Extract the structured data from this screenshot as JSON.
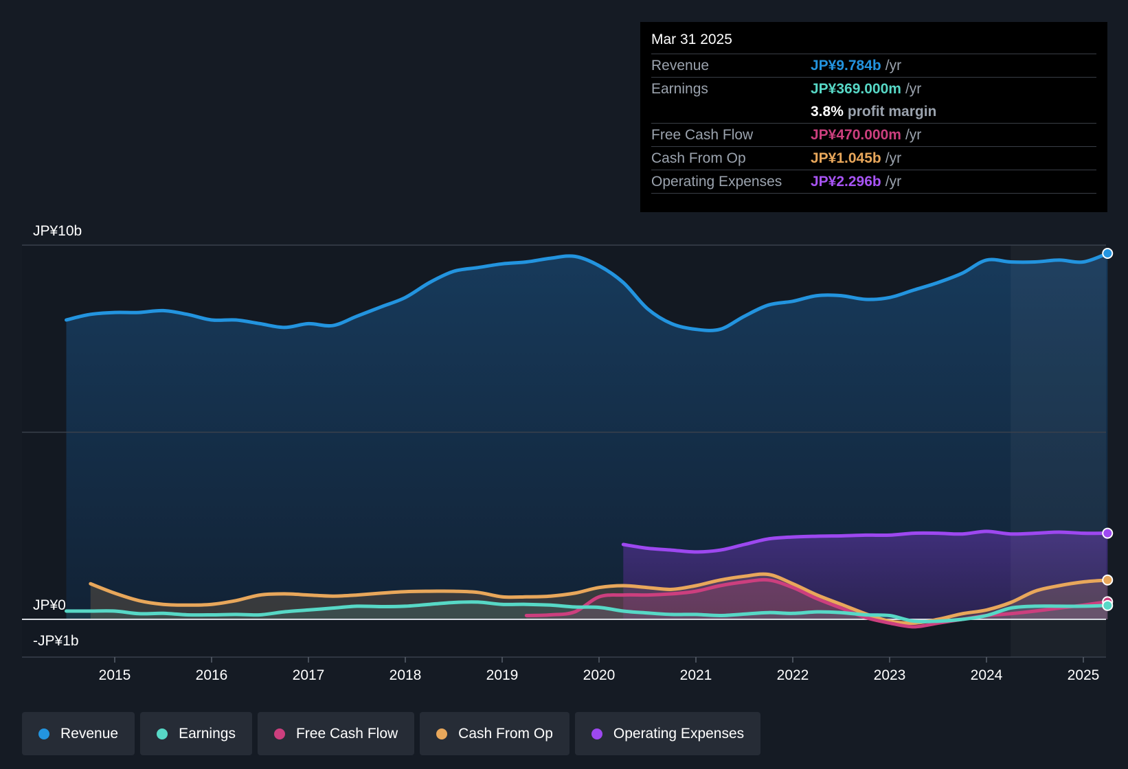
{
  "tooltip": {
    "date": "Mar 31 2025",
    "revenue": {
      "label": "Revenue",
      "value": "JP¥9.784b",
      "unit": "/yr"
    },
    "earnings": {
      "label": "Earnings",
      "value": "JP¥369.000m",
      "unit": "/yr"
    },
    "profit_margin": {
      "pct": "3.8%",
      "text": "profit margin"
    },
    "fcf": {
      "label": "Free Cash Flow",
      "value": "JP¥470.000m",
      "unit": "/yr"
    },
    "cfo": {
      "label": "Cash From Op",
      "value": "JP¥1.045b",
      "unit": "/yr"
    },
    "opex": {
      "label": "Operating Expenses",
      "value": "JP¥2.296b",
      "unit": "/yr"
    }
  },
  "legend": [
    {
      "label": "Revenue",
      "color": "#2394df"
    },
    {
      "label": "Earnings",
      "color": "#57d8c6"
    },
    {
      "label": "Free Cash Flow",
      "color": "#cc3f7e"
    },
    {
      "label": "Cash From Op",
      "color": "#e8a75b"
    },
    {
      "label": "Operating Expenses",
      "color": "#9d48f0"
    }
  ],
  "chart_data": {
    "type": "area",
    "title": "",
    "xlabel": "",
    "ylabel": "",
    "xlim": [
      2014.05,
      2025.25
    ],
    "ylim": [
      -1,
      10
    ],
    "y_axis_labels": [
      "JP¥10b",
      "JP¥0",
      "-JP¥1b"
    ],
    "y_axis_values": [
      10,
      0,
      -1
    ],
    "gridlines_at": [
      10,
      5,
      0
    ],
    "x_ticks": [
      2015,
      2016,
      2017,
      2018,
      2019,
      2020,
      2021,
      2022,
      2023,
      2024,
      2025
    ],
    "x_tick_labels": [
      "2015",
      "2016",
      "2017",
      "2018",
      "2019",
      "2020",
      "2021",
      "2022",
      "2023",
      "2024",
      "2025"
    ],
    "highlight_start": 2024.25,
    "series": [
      {
        "name": "Revenue",
        "color": "#2394df",
        "points": [
          [
            2014.5,
            8.0
          ],
          [
            2014.75,
            8.15
          ],
          [
            2015.0,
            8.2
          ],
          [
            2015.25,
            8.2
          ],
          [
            2015.5,
            8.25
          ],
          [
            2015.75,
            8.15
          ],
          [
            2016.0,
            8.0
          ],
          [
            2016.25,
            8.0
          ],
          [
            2016.5,
            7.9
          ],
          [
            2016.75,
            7.8
          ],
          [
            2017.0,
            7.9
          ],
          [
            2017.25,
            7.85
          ],
          [
            2017.5,
            8.1
          ],
          [
            2017.75,
            8.35
          ],
          [
            2018.0,
            8.6
          ],
          [
            2018.25,
            9.0
          ],
          [
            2018.5,
            9.3
          ],
          [
            2018.75,
            9.4
          ],
          [
            2019.0,
            9.5
          ],
          [
            2019.25,
            9.55
          ],
          [
            2019.5,
            9.65
          ],
          [
            2019.75,
            9.7
          ],
          [
            2020.0,
            9.45
          ],
          [
            2020.25,
            9.0
          ],
          [
            2020.5,
            8.3
          ],
          [
            2020.75,
            7.9
          ],
          [
            2021.0,
            7.75
          ],
          [
            2021.25,
            7.75
          ],
          [
            2021.5,
            8.1
          ],
          [
            2021.75,
            8.4
          ],
          [
            2022.0,
            8.5
          ],
          [
            2022.25,
            8.65
          ],
          [
            2022.5,
            8.65
          ],
          [
            2022.75,
            8.55
          ],
          [
            2023.0,
            8.6
          ],
          [
            2023.25,
            8.8
          ],
          [
            2023.5,
            9.0
          ],
          [
            2023.75,
            9.25
          ],
          [
            2024.0,
            9.6
          ],
          [
            2024.25,
            9.55
          ],
          [
            2024.5,
            9.55
          ],
          [
            2024.75,
            9.6
          ],
          [
            2025.0,
            9.55
          ],
          [
            2025.25,
            9.78
          ]
        ]
      },
      {
        "name": "Operating Expenses",
        "color": "#9d48f0",
        "points": [
          [
            2020.25,
            2.0
          ],
          [
            2020.5,
            1.9
          ],
          [
            2020.75,
            1.85
          ],
          [
            2021.0,
            1.8
          ],
          [
            2021.25,
            1.85
          ],
          [
            2021.5,
            2.0
          ],
          [
            2021.75,
            2.15
          ],
          [
            2022.0,
            2.2
          ],
          [
            2022.25,
            2.22
          ],
          [
            2022.5,
            2.23
          ],
          [
            2022.75,
            2.25
          ],
          [
            2023.0,
            2.25
          ],
          [
            2023.25,
            2.3
          ],
          [
            2023.5,
            2.3
          ],
          [
            2023.75,
            2.28
          ],
          [
            2024.0,
            2.35
          ],
          [
            2024.25,
            2.28
          ],
          [
            2024.5,
            2.3
          ],
          [
            2024.75,
            2.33
          ],
          [
            2025.0,
            2.3
          ],
          [
            2025.25,
            2.3
          ]
        ]
      },
      {
        "name": "Cash From Op",
        "color": "#e8a75b",
        "points": [
          [
            2014.75,
            0.95
          ],
          [
            2015.0,
            0.7
          ],
          [
            2015.25,
            0.5
          ],
          [
            2015.5,
            0.4
          ],
          [
            2015.75,
            0.38
          ],
          [
            2016.0,
            0.4
          ],
          [
            2016.25,
            0.5
          ],
          [
            2016.5,
            0.65
          ],
          [
            2016.75,
            0.68
          ],
          [
            2017.0,
            0.65
          ],
          [
            2017.25,
            0.62
          ],
          [
            2017.5,
            0.65
          ],
          [
            2017.75,
            0.7
          ],
          [
            2018.0,
            0.74
          ],
          [
            2018.25,
            0.75
          ],
          [
            2018.5,
            0.75
          ],
          [
            2018.75,
            0.72
          ],
          [
            2019.0,
            0.6
          ],
          [
            2019.25,
            0.6
          ],
          [
            2019.5,
            0.62
          ],
          [
            2019.75,
            0.7
          ],
          [
            2020.0,
            0.85
          ],
          [
            2020.25,
            0.9
          ],
          [
            2020.5,
            0.85
          ],
          [
            2020.75,
            0.8
          ],
          [
            2021.0,
            0.9
          ],
          [
            2021.25,
            1.05
          ],
          [
            2021.5,
            1.15
          ],
          [
            2021.75,
            1.2
          ],
          [
            2022.0,
            0.95
          ],
          [
            2022.25,
            0.65
          ],
          [
            2022.5,
            0.4
          ],
          [
            2022.75,
            0.15
          ],
          [
            2023.0,
            -0.05
          ],
          [
            2023.25,
            -0.1
          ],
          [
            2023.5,
            0.0
          ],
          [
            2023.75,
            0.15
          ],
          [
            2024.0,
            0.25
          ],
          [
            2024.25,
            0.45
          ],
          [
            2024.5,
            0.75
          ],
          [
            2024.75,
            0.9
          ],
          [
            2025.0,
            1.0
          ],
          [
            2025.25,
            1.05
          ]
        ]
      },
      {
        "name": "Free Cash Flow",
        "color": "#cc3f7e",
        "points": [
          [
            2019.25,
            0.1
          ],
          [
            2019.5,
            0.12
          ],
          [
            2019.75,
            0.2
          ],
          [
            2020.0,
            0.6
          ],
          [
            2020.25,
            0.65
          ],
          [
            2020.5,
            0.65
          ],
          [
            2020.75,
            0.68
          ],
          [
            2021.0,
            0.75
          ],
          [
            2021.25,
            0.9
          ],
          [
            2021.5,
            1.0
          ],
          [
            2021.75,
            1.05
          ],
          [
            2022.0,
            0.85
          ],
          [
            2022.25,
            0.55
          ],
          [
            2022.5,
            0.3
          ],
          [
            2022.75,
            0.05
          ],
          [
            2023.0,
            -0.1
          ],
          [
            2023.25,
            -0.2
          ],
          [
            2023.5,
            -0.1
          ],
          [
            2023.75,
            0.0
          ],
          [
            2024.0,
            0.1
          ],
          [
            2024.25,
            0.15
          ],
          [
            2024.5,
            0.22
          ],
          [
            2024.75,
            0.3
          ],
          [
            2025.0,
            0.38
          ],
          [
            2025.25,
            0.47
          ]
        ]
      },
      {
        "name": "Earnings",
        "color": "#57d8c6",
        "points": [
          [
            2014.5,
            0.22
          ],
          [
            2014.75,
            0.22
          ],
          [
            2015.0,
            0.22
          ],
          [
            2015.25,
            0.15
          ],
          [
            2015.5,
            0.16
          ],
          [
            2015.75,
            0.12
          ],
          [
            2016.0,
            0.12
          ],
          [
            2016.25,
            0.13
          ],
          [
            2016.5,
            0.12
          ],
          [
            2016.75,
            0.2
          ],
          [
            2017.0,
            0.25
          ],
          [
            2017.25,
            0.3
          ],
          [
            2017.5,
            0.35
          ],
          [
            2017.75,
            0.34
          ],
          [
            2018.0,
            0.35
          ],
          [
            2018.25,
            0.4
          ],
          [
            2018.5,
            0.45
          ],
          [
            2018.75,
            0.46
          ],
          [
            2019.0,
            0.4
          ],
          [
            2019.25,
            0.4
          ],
          [
            2019.5,
            0.38
          ],
          [
            2019.75,
            0.33
          ],
          [
            2020.0,
            0.32
          ],
          [
            2020.25,
            0.22
          ],
          [
            2020.5,
            0.17
          ],
          [
            2020.75,
            0.13
          ],
          [
            2021.0,
            0.13
          ],
          [
            2021.25,
            0.1
          ],
          [
            2021.5,
            0.14
          ],
          [
            2021.75,
            0.18
          ],
          [
            2022.0,
            0.16
          ],
          [
            2022.25,
            0.2
          ],
          [
            2022.5,
            0.18
          ],
          [
            2022.75,
            0.12
          ],
          [
            2023.0,
            0.1
          ],
          [
            2023.25,
            -0.05
          ],
          [
            2023.5,
            -0.05
          ],
          [
            2023.75,
            0.0
          ],
          [
            2024.0,
            0.1
          ],
          [
            2024.25,
            0.3
          ],
          [
            2024.5,
            0.35
          ],
          [
            2024.75,
            0.35
          ],
          [
            2025.0,
            0.35
          ],
          [
            2025.25,
            0.37
          ]
        ]
      }
    ]
  }
}
